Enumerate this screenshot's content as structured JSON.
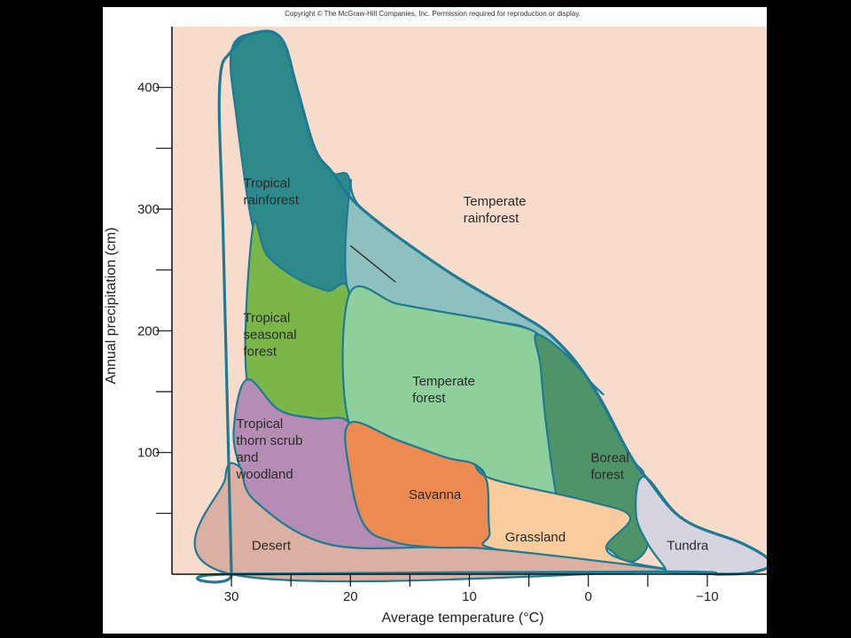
{
  "copyright": "Copyright © The McGraw-Hill Companies, Inc. Permission required for reproduction or display.",
  "colors": {
    "background_outer": "#000000",
    "plot_bg": "#f7dccb",
    "outline": "#1f7b93",
    "tropical_rainforest": "#2e8a8a",
    "temperate_rainforest": "#8ec0c0",
    "tropical_seasonal_forest": "#7ab648",
    "temperate_forest": "#8ecf9c",
    "boreal_forest": "#4f9468",
    "tropical_thorn_scrub": "#b48cb4",
    "savanna": "#ec8a52",
    "grassland": "#f8cc9c",
    "desert": "#dcafa3",
    "tundra": "#d6d4de"
  },
  "chart_data": {
    "type": "area",
    "title": "",
    "xlabel": "Average temperature (°C)",
    "ylabel": "Annual precipitation (cm)",
    "xlim": [
      35,
      -15
    ],
    "ylim": [
      0,
      450
    ],
    "x_reversed": true,
    "x_ticks": [
      30,
      25,
      20,
      15,
      10,
      5,
      0,
      -5,
      -10
    ],
    "x_tick_labels": [
      "30",
      "20",
      "10",
      "0",
      "−10"
    ],
    "x_tick_label_values": [
      30,
      20,
      10,
      0,
      -10
    ],
    "y_ticks": [
      50,
      100,
      150,
      200,
      250,
      300,
      350,
      400
    ],
    "y_tick_labels": [
      "100",
      "200",
      "300",
      "400"
    ],
    "y_tick_label_values": [
      100,
      200,
      300,
      400
    ],
    "grid": false,
    "outline": [
      [
        30,
        0
      ],
      [
        30.2,
        80
      ],
      [
        30.7,
        280
      ],
      [
        31,
        400
      ],
      [
        30,
        430
      ],
      [
        28,
        445
      ],
      [
        25.8,
        440
      ],
      [
        24.5,
        400
      ],
      [
        23,
        350
      ],
      [
        21.5,
        330
      ],
      [
        19,
        300
      ],
      [
        12,
        250
      ],
      [
        6,
        215
      ],
      [
        3,
        195
      ],
      [
        0,
        160
      ],
      [
        -3.5,
        98
      ],
      [
        -5,
        78
      ],
      [
        -8,
        45
      ],
      [
        -13,
        25
      ],
      [
        -15.3,
        10
      ],
      [
        -14,
        2
      ],
      [
        -11,
        0
      ],
      [
        -6,
        2
      ],
      [
        30,
        0
      ]
    ],
    "biomes": [
      {
        "name": "Tropical rainforest",
        "label_lines": [
          "Tropical",
          "rainforest"
        ],
        "label_at": [
          29,
          318
        ],
        "polygon": [
          [
            28.2,
            285
          ],
          [
            29.5,
            370
          ],
          [
            30,
            430
          ],
          [
            28,
            445
          ],
          [
            25.8,
            440
          ],
          [
            24.5,
            400
          ],
          [
            23,
            350
          ],
          [
            21.5,
            330
          ],
          [
            20,
            320
          ],
          [
            20.1,
            230
          ],
          [
            22,
            233
          ],
          [
            24.5,
            243
          ],
          [
            27,
            262
          ]
        ]
      },
      {
        "name": "Temperate rainforest",
        "label_lines": [
          "Temperate",
          "rainforest"
        ],
        "label_at": [
          10.5,
          303
        ],
        "polygon": [
          [
            20,
            320
          ],
          [
            19,
            300
          ],
          [
            12,
            250
          ],
          [
            6,
            215
          ],
          [
            3,
            195
          ],
          [
            0,
            160
          ],
          [
            -1,
            150
          ],
          [
            4.2,
            197
          ],
          [
            8,
            208
          ],
          [
            12,
            215
          ],
          [
            16,
            222
          ],
          [
            20.1,
            230
          ]
        ]
      },
      {
        "name": "Tropical seasonal forest",
        "label_lines": [
          "Tropical",
          "seasonal",
          "forest"
        ],
        "label_at": [
          29,
          207
        ],
        "polygon": [
          [
            28.2,
            285
          ],
          [
            27,
            262
          ],
          [
            24.5,
            243
          ],
          [
            22,
            233
          ],
          [
            20.1,
            230
          ],
          [
            20.1,
            124
          ],
          [
            23,
            128
          ],
          [
            26,
            135
          ],
          [
            28.7,
            160
          ]
        ]
      },
      {
        "name": "Temperate forest",
        "label_lines": [
          "Temperate",
          "forest"
        ],
        "label_at": [
          14.8,
          155
        ],
        "polygon": [
          [
            20.1,
            230
          ],
          [
            16,
            222
          ],
          [
            12,
            215
          ],
          [
            8,
            208
          ],
          [
            4.2,
            197
          ],
          [
            4,
            170
          ],
          [
            3.5,
            120
          ],
          [
            2.5,
            55
          ],
          [
            1.5,
            40
          ],
          [
            -3.5,
            47
          ],
          [
            8,
            78
          ],
          [
            9.5,
            90
          ],
          [
            12,
            96
          ],
          [
            16,
            110
          ],
          [
            20.1,
            124
          ]
        ]
      },
      {
        "name": "Boreal forest",
        "label_lines": [
          "Boreal",
          "forest"
        ],
        "label_at": [
          -0.2,
          92
        ],
        "polygon": [
          [
            4.2,
            197
          ],
          [
            0,
            160
          ],
          [
            -3.5,
            98
          ],
          [
            -4.7,
            80
          ],
          [
            -4,
            50
          ],
          [
            -5,
            25
          ],
          [
            -3.5,
            10
          ],
          [
            -1.5,
            22
          ],
          [
            1.5,
            40
          ],
          [
            2.5,
            55
          ],
          [
            3.5,
            120
          ],
          [
            4,
            170
          ]
        ]
      },
      {
        "name": "Tropical thorn scrub and woodland",
        "label_lines": [
          "Tropical",
          "thorn scrub",
          "and",
          "woodland"
        ],
        "label_at": [
          29.6,
          120
        ],
        "polygon": [
          [
            28.7,
            160
          ],
          [
            26,
            135
          ],
          [
            23,
            128
          ],
          [
            20.1,
            124
          ],
          [
            20,
            80
          ],
          [
            18.8,
            40
          ],
          [
            16.5,
            27
          ],
          [
            13,
            22
          ],
          [
            22,
            25
          ],
          [
            28,
            60
          ],
          [
            29.3,
            88
          ],
          [
            29.8,
            120
          ]
        ]
      },
      {
        "name": "Savanna",
        "label_lines": [
          "Savanna"
        ],
        "label_at": [
          15.1,
          62
        ],
        "polygon": [
          [
            20.1,
            124
          ],
          [
            16,
            110
          ],
          [
            12,
            96
          ],
          [
            9.5,
            90
          ],
          [
            8.5,
            75
          ],
          [
            8.3,
            35
          ],
          [
            7.5,
            20
          ],
          [
            13,
            22
          ],
          [
            16.5,
            27
          ],
          [
            18.8,
            40
          ],
          [
            20,
            80
          ]
        ]
      },
      {
        "name": "Grassland",
        "label_lines": [
          "Grassland"
        ],
        "label_at": [
          7,
          27
        ],
        "polygon": [
          [
            9.5,
            90
          ],
          [
            8,
            78
          ],
          [
            0,
            60
          ],
          [
            -3.5,
            47
          ],
          [
            -1.5,
            22
          ],
          [
            -3.5,
            10
          ],
          [
            -6.5,
            4
          ],
          [
            7.5,
            20
          ],
          [
            8.3,
            35
          ],
          [
            8.5,
            75
          ]
        ]
      },
      {
        "name": "Desert",
        "label_lines": [
          "Desert"
        ],
        "label_at": [
          28.3,
          20
        ],
        "polygon": [
          [
            30,
            0
          ],
          [
            30.5,
            80
          ],
          [
            29.3,
            88
          ],
          [
            28,
            60
          ],
          [
            22,
            25
          ],
          [
            13,
            22
          ],
          [
            7.5,
            20
          ],
          [
            -6.5,
            4
          ],
          [
            -6,
            2
          ]
        ]
      },
      {
        "name": "Tundra",
        "label_lines": [
          "Tundra"
        ],
        "label_at": [
          -6.6,
          20
        ],
        "polygon": [
          [
            -4.7,
            80
          ],
          [
            -8,
            45
          ],
          [
            -13,
            25
          ],
          [
            -15.3,
            10
          ],
          [
            -14,
            2
          ],
          [
            -11,
            0
          ],
          [
            -6,
            2
          ],
          [
            -6.5,
            4
          ],
          [
            -5,
            25
          ],
          [
            -4,
            50
          ]
        ]
      }
    ],
    "leader_line": [
      [
        16.2,
        240
      ],
      [
        20,
        270
      ]
    ]
  }
}
